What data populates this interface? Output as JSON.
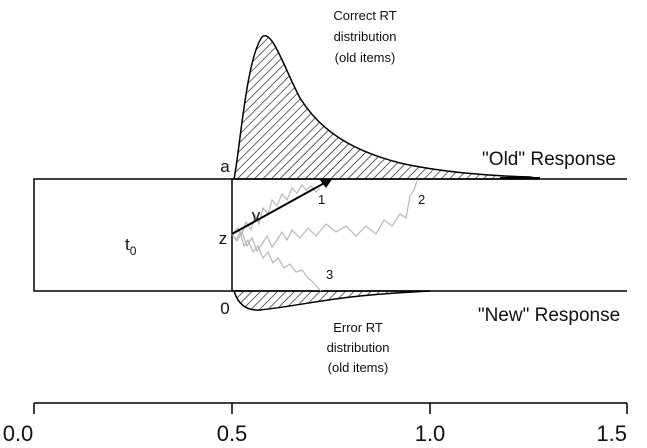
{
  "correct_label": [
    "Correct RT",
    "distribution",
    "(old items)"
  ],
  "error_label": [
    "Error RT",
    "distribution",
    "(old items)"
  ],
  "old_response": "\"Old\" Response",
  "new_response": "\"New\" Response",
  "boundary_a": "a",
  "boundary_0": "0",
  "start_z": "z",
  "drift_v": "v",
  "t0_base": "t",
  "t0_sub": "0",
  "path_labels": [
    "1",
    "2",
    "3"
  ],
  "axis_ticks": [
    "0.0",
    "0.5",
    "1.0",
    "1.5"
  ],
  "colors": {
    "hatch": "#000000",
    "paths": "#b8b8b8",
    "lines": "#000000"
  }
}
